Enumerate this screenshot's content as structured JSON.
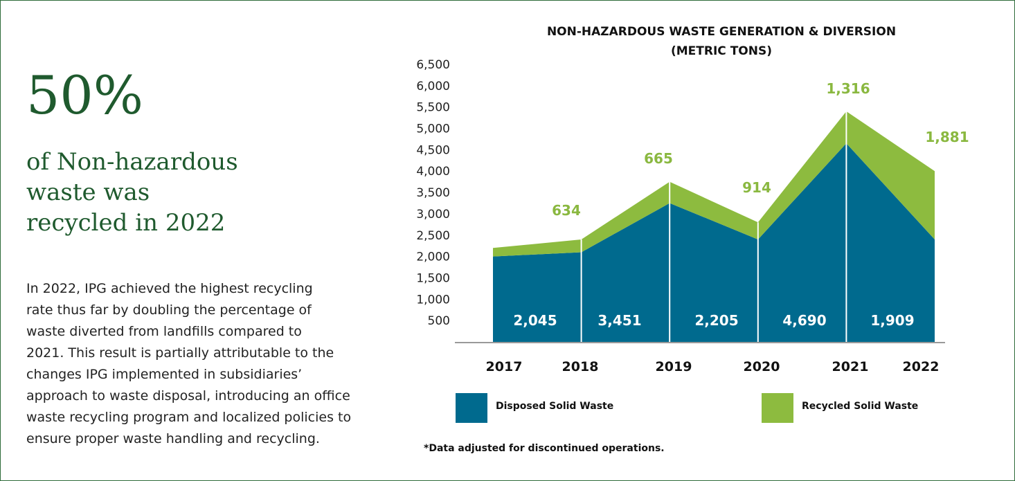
{
  "heading": {
    "big": "50%",
    "lines": [
      "of Non-hazardous",
      "waste was",
      "recycled in 2022"
    ]
  },
  "paragraph": [
    "In 2022, IPG achieved the highest recycling",
    "rate thus far by doubling the percentage of",
    "waste diverted from landfills compared to",
    "2021. This result is partially attributable to the",
    "changes IPG implemented in subsidiaries’",
    "approach to waste disposal, introducing an office",
    "waste recycling program and localized policies to",
    "ensure proper waste handling and recycling."
  ],
  "chart_data": {
    "type": "area",
    "title": [
      "NON-HAZARDOUS WASTE GENERATION & DIVERSION",
      "(METRIC TONS)"
    ],
    "categories": [
      "2017",
      "2018",
      "2019",
      "2020",
      "2021",
      "2022"
    ],
    "series": [
      {
        "name": "Disposed Solid Waste",
        "color": "#006a8e",
        "values": [
          2000,
          2100,
          3250,
          2400,
          4650,
          2400
        ],
        "data_labels": [
          "2,045",
          "3,451",
          "2,205",
          "4,690",
          "1,909"
        ]
      },
      {
        "name": "Recycled Solid Waste",
        "color": "#8dbb3f",
        "values": [
          200,
          300,
          500,
          400,
          750,
          1600
        ],
        "data_labels": [
          "634",
          "665",
          "914",
          "1,316",
          "1,881"
        ]
      }
    ],
    "stacked": true,
    "ylim": [
      0,
      6500
    ],
    "yticks": [
      {
        "value": 500,
        "label": "500"
      },
      {
        "value": 1000,
        "label": "1,000"
      },
      {
        "value": 1500,
        "label": "1,500"
      },
      {
        "value": 2000,
        "label": "2,000"
      },
      {
        "value": 2500,
        "label": "2,500"
      },
      {
        "value": 3000,
        "label": "3,000"
      },
      {
        "value": 3500,
        "label": "3,500"
      },
      {
        "value": 4000,
        "label": "4,000"
      },
      {
        "value": 4500,
        "label": "4,500"
      },
      {
        "value": 5000,
        "label": "5,000"
      },
      {
        "value": 5500,
        "label": "5,500"
      },
      {
        "value": 6000,
        "label": "6,000"
      },
      {
        "value": 6500,
        "label": "6,500"
      }
    ],
    "footnote": "*Data adjusted for discontinued operations."
  }
}
